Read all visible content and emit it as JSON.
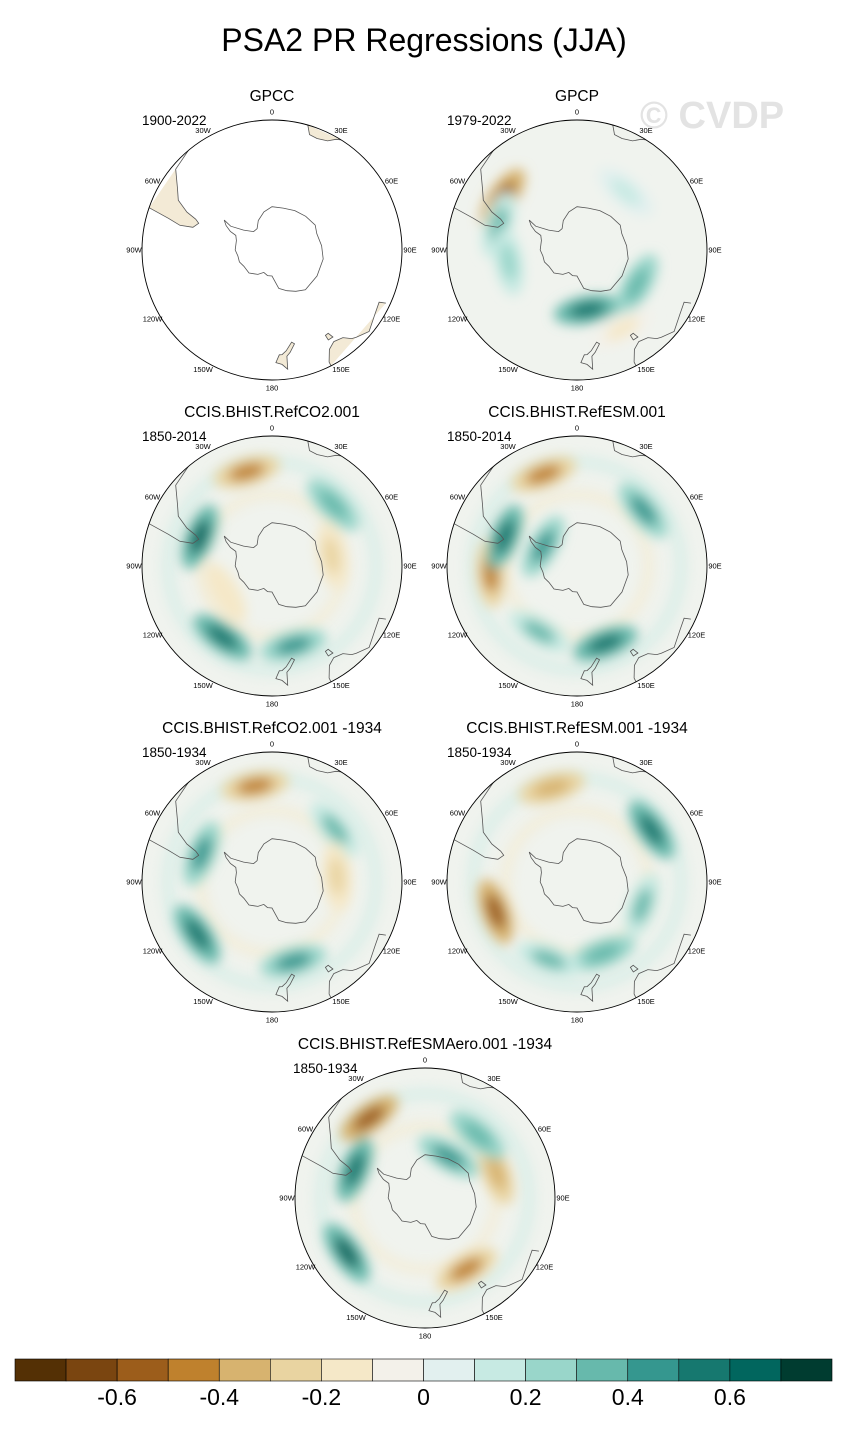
{
  "title": "PSA2 PR Regressions (JJA)",
  "watermark": "© CVDP",
  "lon_labels": [
    "0",
    "30E",
    "60E",
    "90E",
    "120E",
    "150E",
    "180",
    "150W",
    "120W",
    "90W",
    "60W",
    "30W"
  ],
  "chart_data": {
    "type": "polar-contour-map-panels",
    "projection": "South Polar Stereographic",
    "variable": "PR regression onto PSA2",
    "season": "JJA",
    "panels": [
      {
        "name": "GPCC",
        "period": "1900-2022",
        "pattern": "land-only",
        "features": []
      },
      {
        "name": "GPCP",
        "period": "1979-2022",
        "pattern": "weak",
        "features": [
          {
            "lon": -55,
            "lat": -48,
            "value": -0.55
          },
          {
            "lon": -72,
            "lat": -52,
            "value": 0.3
          },
          {
            "lon": 170,
            "lat": -62,
            "value": 0.55
          },
          {
            "lon": 120,
            "lat": -58,
            "value": 0.35
          },
          {
            "lon": -100,
            "lat": -58,
            "value": 0.25
          },
          {
            "lon": 40,
            "lat": -55,
            "value": 0.15
          },
          {
            "lon": 150,
            "lat": -48,
            "value": -0.15
          }
        ]
      },
      {
        "name": "CCIS.BHIST.RefCO2.001",
        "period": "1850-2014",
        "pattern": "ring",
        "features": [
          {
            "lon": -15,
            "lat": -45,
            "value": -0.45
          },
          {
            "lon": -68,
            "lat": -54,
            "value": 0.6
          },
          {
            "lon": -145,
            "lat": -50,
            "value": 0.5
          },
          {
            "lon": 165,
            "lat": -52,
            "value": 0.45
          },
          {
            "lon": 45,
            "lat": -50,
            "value": 0.35
          },
          {
            "lon": 80,
            "lat": -62,
            "value": -0.25
          },
          {
            "lon": -120,
            "lat": -65,
            "value": -0.2
          }
        ]
      },
      {
        "name": "CCIS.BHIST.RefESM.001",
        "period": "1850-2014",
        "pattern": "ring",
        "features": [
          {
            "lon": -20,
            "lat": -45,
            "value": -0.45
          },
          {
            "lon": -95,
            "lat": -50,
            "value": -0.45
          },
          {
            "lon": -68,
            "lat": -54,
            "value": 0.55
          },
          {
            "lon": 160,
            "lat": -52,
            "value": 0.5
          },
          {
            "lon": 50,
            "lat": -50,
            "value": 0.4
          },
          {
            "lon": -150,
            "lat": -55,
            "value": 0.3
          },
          {
            "lon": -60,
            "lat": -72,
            "value": 0.4
          }
        ]
      },
      {
        "name": "CCIS.BHIST.RefCO2.001 -1934",
        "period": "1850-1934",
        "pattern": "ring",
        "features": [
          {
            "lon": -10,
            "lat": -45,
            "value": -0.45
          },
          {
            "lon": -125,
            "lat": -48,
            "value": 0.55
          },
          {
            "lon": 165,
            "lat": -52,
            "value": 0.4
          },
          {
            "lon": 50,
            "lat": -52,
            "value": 0.3
          },
          {
            "lon": 85,
            "lat": -60,
            "value": -0.25
          },
          {
            "lon": -68,
            "lat": -55,
            "value": 0.45
          }
        ]
      },
      {
        "name": "CCIS.BHIST.RefESM.001 -1934",
        "period": "1850-1934",
        "pattern": "ring",
        "features": [
          {
            "lon": -15,
            "lat": -45,
            "value": -0.35
          },
          {
            "lon": -110,
            "lat": -50,
            "value": -0.55
          },
          {
            "lon": 55,
            "lat": -48,
            "value": 0.5
          },
          {
            "lon": 160,
            "lat": -55,
            "value": 0.35
          },
          {
            "lon": -160,
            "lat": -52,
            "value": 0.3
          },
          {
            "lon": 110,
            "lat": -58,
            "value": 0.3
          }
        ]
      },
      {
        "name": "CCIS.BHIST.RefESMAero.001 -1934",
        "period": "1850-1934",
        "pattern": "ring",
        "features": [
          {
            "lon": -35,
            "lat": -45,
            "value": -0.6
          },
          {
            "lon": -125,
            "lat": -46,
            "value": 0.6
          },
          {
            "lon": 70,
            "lat": -55,
            "value": -0.4
          },
          {
            "lon": 150,
            "lat": -52,
            "value": -0.5
          },
          {
            "lon": 40,
            "lat": -52,
            "value": 0.35
          },
          {
            "lon": 30,
            "lat": -68,
            "value": 0.45
          },
          {
            "lon": -68,
            "lat": -55,
            "value": 0.5
          }
        ]
      }
    ],
    "colorbar": {
      "levels": [
        -0.7,
        -0.6,
        -0.5,
        -0.4,
        -0.3,
        -0.2,
        -0.1,
        0,
        0.1,
        0.2,
        0.3,
        0.4,
        0.5,
        0.6,
        0.7
      ],
      "labels": [
        "-0.6",
        "-0.4",
        "-0.2",
        "0",
        "0.2",
        "0.4",
        "0.6"
      ],
      "colors": [
        "#543005",
        "#7a4510",
        "#9c5d1b",
        "#bf812d",
        "#d7b36f",
        "#e9d4a1",
        "#f5e8c8",
        "#f3f1ea",
        "#e2f0ef",
        "#c7eae3",
        "#99d6ca",
        "#67b9ac",
        "#35978f",
        "#16786f",
        "#01665e",
        "#003c30"
      ]
    }
  }
}
